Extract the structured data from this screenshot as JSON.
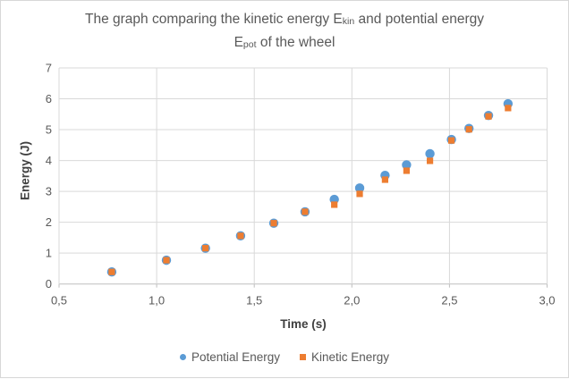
{
  "title": {
    "l1a": "The graph comparing the kinetic energy E",
    "l1sub": "kin",
    "l1b": " and potential energy",
    "l2a": "E",
    "l2sub": "pot",
    "l2b": " of the wheel"
  },
  "chart_data": {
    "type": "scatter",
    "title": "The graph comparing the kinetic energy Ekin and potential energy Epot of the wheel",
    "xlabel": "Time (s)",
    "ylabel": "Energy (J)",
    "xlim": [
      0.5,
      3.0
    ],
    "ylim": [
      0,
      7
    ],
    "grid": true,
    "legend_position": "bottom",
    "x_ticks": [
      {
        "v": 0.5,
        "label": "0,5"
      },
      {
        "v": 1.0,
        "label": "1,0"
      },
      {
        "v": 1.5,
        "label": "1,5"
      },
      {
        "v": 2.0,
        "label": "2,0"
      },
      {
        "v": 2.5,
        "label": "2,5"
      },
      {
        "v": 3.0,
        "label": "3,0"
      }
    ],
    "y_ticks": [
      {
        "v": 0,
        "label": "0"
      },
      {
        "v": 1,
        "label": "1"
      },
      {
        "v": 2,
        "label": "2"
      },
      {
        "v": 3,
        "label": "3"
      },
      {
        "v": 4,
        "label": "4"
      },
      {
        "v": 5,
        "label": "5"
      },
      {
        "v": 6,
        "label": "6"
      },
      {
        "v": 7,
        "label": "7"
      }
    ],
    "x": [
      0.77,
      1.05,
      1.25,
      1.43,
      1.6,
      1.76,
      1.91,
      2.04,
      2.17,
      2.28,
      2.4,
      2.51,
      2.6,
      2.7,
      2.8
    ],
    "series": [
      {
        "id": "potential",
        "name": "Potential Energy",
        "marker": "circle",
        "color": "#5B9BD5",
        "values": [
          0.39,
          0.77,
          1.16,
          1.56,
          1.97,
          2.34,
          2.74,
          3.11,
          3.52,
          3.86,
          4.22,
          4.68,
          5.04,
          5.46,
          5.84
        ]
      },
      {
        "id": "kinetic",
        "name": "Kinetic Energy",
        "marker": "square",
        "color": "#ED7D31",
        "values": [
          0.39,
          0.77,
          1.16,
          1.56,
          1.97,
          2.34,
          2.57,
          2.92,
          3.38,
          3.67,
          3.99,
          4.65,
          5.01,
          5.43,
          5.7
        ]
      }
    ],
    "colors": {
      "gridline": "#D9D9D9",
      "axis_line": "#BFBFBF",
      "tick_text": "#595959",
      "axis_title_text": "#404040",
      "title_text": "#595959",
      "border": "#D7D7D7"
    }
  }
}
